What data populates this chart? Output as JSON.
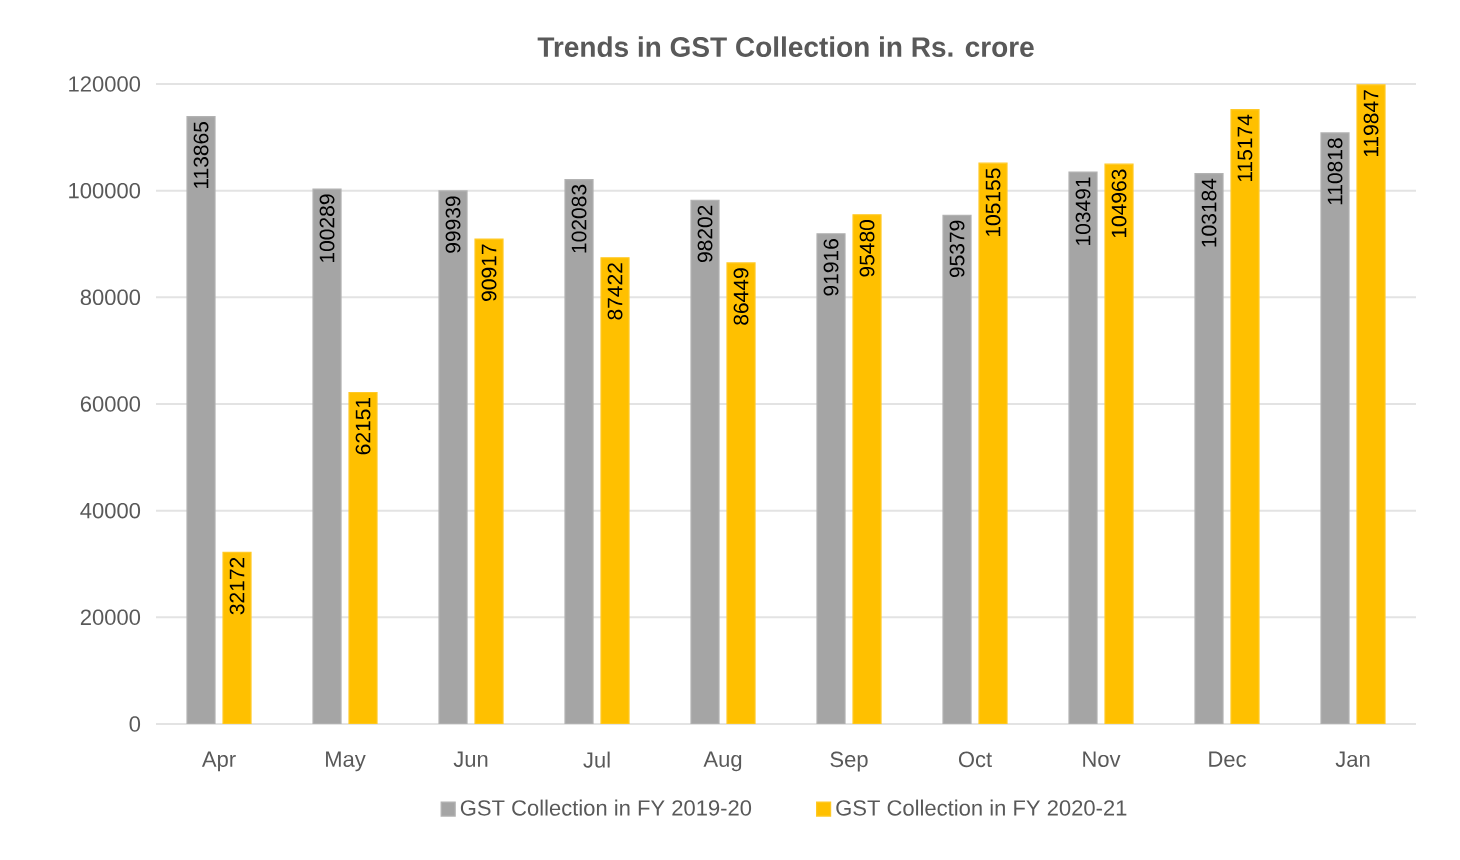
{
  "chart_data": {
    "type": "bar",
    "title": "Trends in GST Collection in Rs. crore",
    "categories": [
      "Apr",
      "May",
      "Jun",
      "Jul",
      "Aug",
      "Sep",
      "Oct",
      "Nov",
      "Dec",
      "Jan"
    ],
    "series": [
      {
        "name": "GST Collection in FY 2019-20",
        "color": "#a5a5a5",
        "values": [
          113865,
          100289,
          99939,
          102083,
          98202,
          91916,
          95379,
          103491,
          103184,
          110818
        ]
      },
      {
        "name": "GST Collection in FY 2020-21",
        "color": "#ffc000",
        "values": [
          32172,
          62151,
          90917,
          87422,
          86449,
          95480,
          105155,
          104963,
          115174,
          119847
        ]
      }
    ],
    "ylim": [
      0,
      120000
    ],
    "yticks": [
      0,
      20000,
      40000,
      60000,
      80000,
      100000,
      120000
    ],
    "grid": "y",
    "legend": "bottom",
    "data_labels": true
  }
}
